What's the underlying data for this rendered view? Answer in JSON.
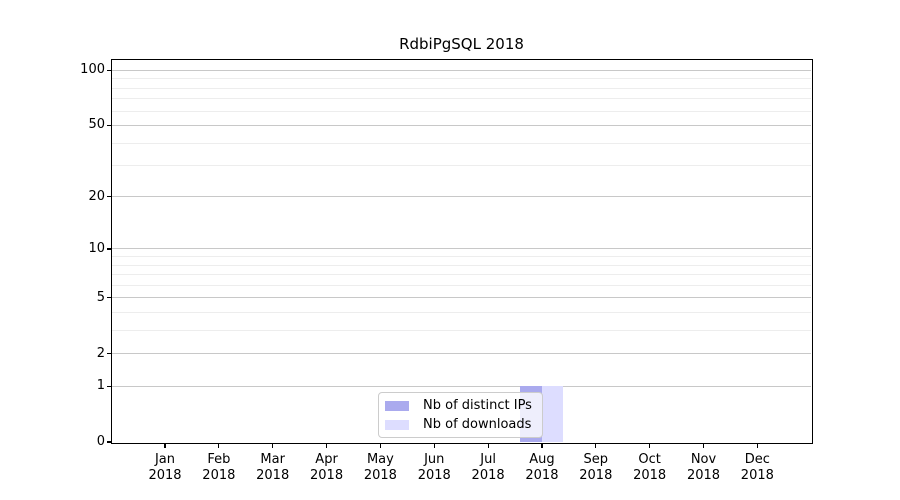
{
  "figure": {
    "title": "RdbiPgSQL 2018"
  },
  "chart_data": {
    "type": "bar",
    "title": "RdbiPgSQL 2018",
    "xlabel": "",
    "ylabel": "",
    "x_tick_labels": [
      {
        "month": "Jan",
        "year": "2018"
      },
      {
        "month": "Feb",
        "year": "2018"
      },
      {
        "month": "Mar",
        "year": "2018"
      },
      {
        "month": "Apr",
        "year": "2018"
      },
      {
        "month": "May",
        "year": "2018"
      },
      {
        "month": "Jun",
        "year": "2018"
      },
      {
        "month": "Jul",
        "year": "2018"
      },
      {
        "month": "Aug",
        "year": "2018"
      },
      {
        "month": "Sep",
        "year": "2018"
      },
      {
        "month": "Oct",
        "year": "2018"
      },
      {
        "month": "Nov",
        "year": "2018"
      },
      {
        "month": "Dec",
        "year": "2018"
      }
    ],
    "series": [
      {
        "name": "Nb of distinct IPs",
        "color": "#aaaaee",
        "values": [
          0,
          0,
          0,
          0,
          0,
          0,
          0,
          1,
          0,
          0,
          0,
          0
        ]
      },
      {
        "name": "Nb of downloads",
        "color": "#ddddff",
        "values": [
          0,
          0,
          0,
          0,
          0,
          0,
          0,
          1,
          0,
          0,
          0,
          0
        ]
      }
    ],
    "y_scale": "log1p",
    "ylim": [
      0,
      114
    ],
    "y_major_ticks": [
      0,
      1,
      2,
      5,
      10,
      20,
      50,
      100
    ],
    "y_minor_gridlines": [
      3,
      4,
      6,
      7,
      8,
      9,
      30,
      40,
      60,
      70,
      80,
      90
    ],
    "grid": true,
    "legend_position": "bottom-center",
    "colors": {
      "major_grid": "#c8c8c8",
      "minor_grid": "#ededed",
      "axis": "#000000",
      "background": "#ffffff"
    }
  }
}
